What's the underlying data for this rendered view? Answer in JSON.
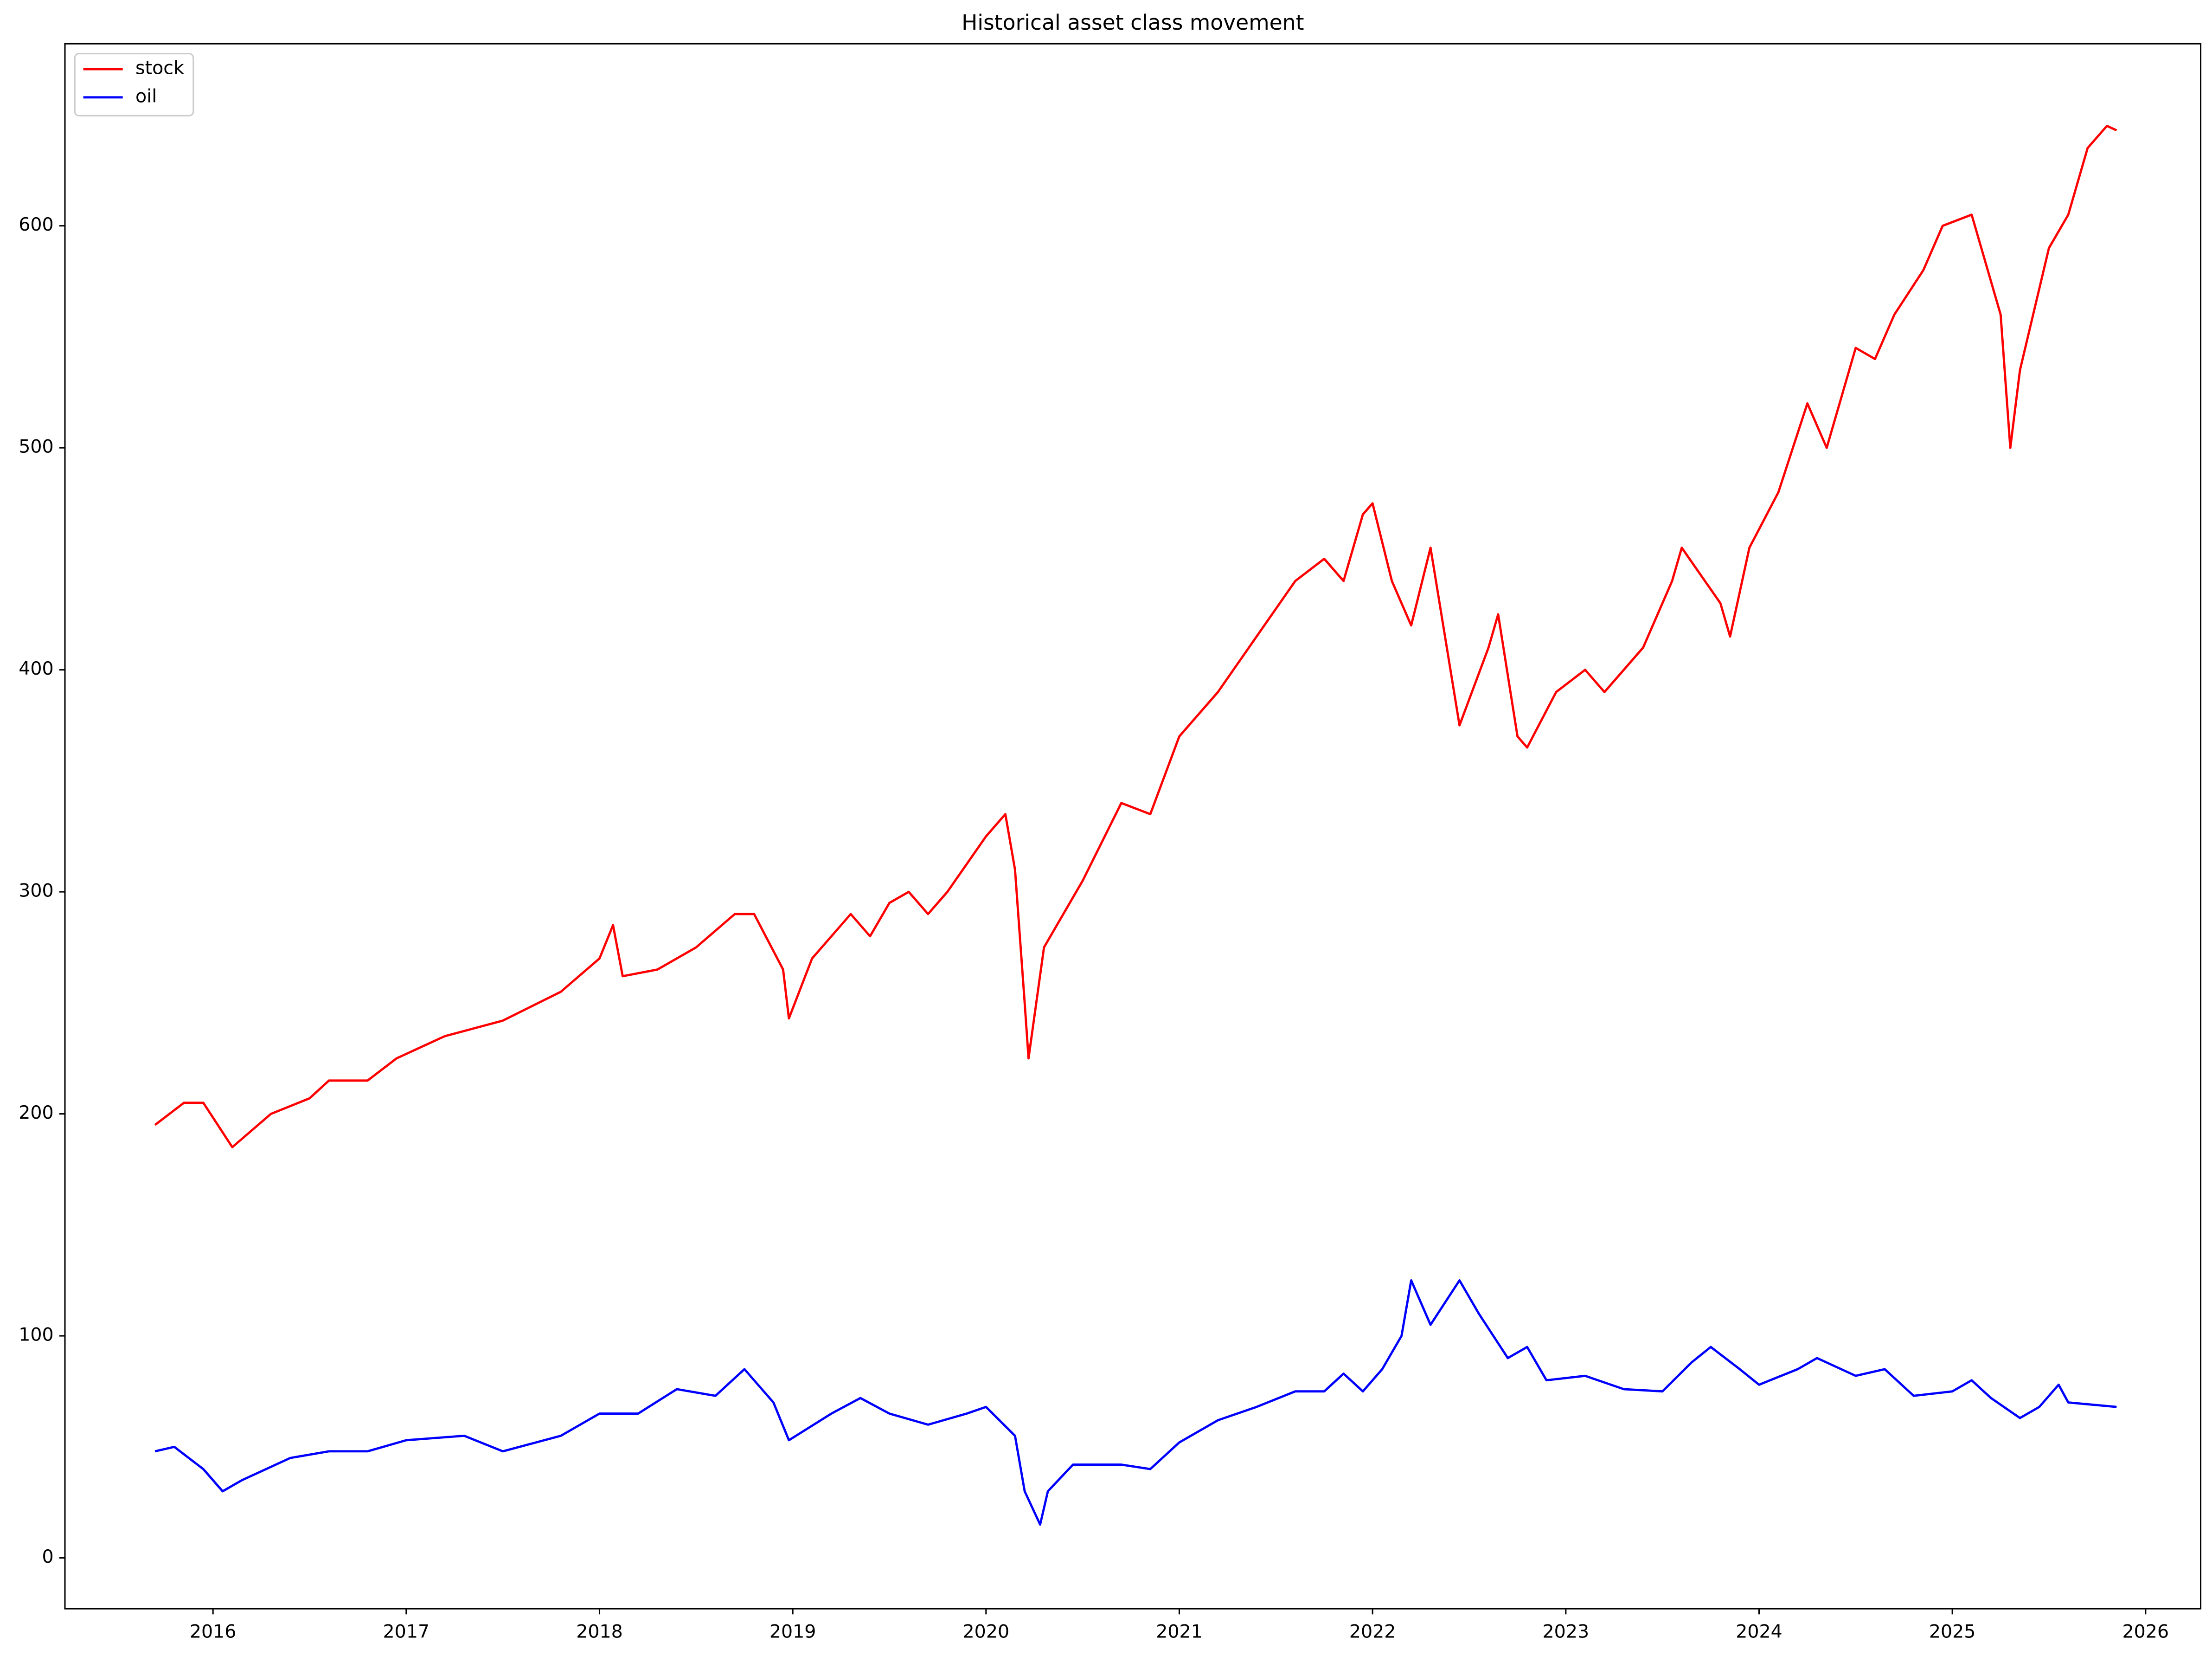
{
  "chart_data": {
    "type": "line",
    "title": "Historical asset class movement",
    "xlim": [
      2015.234,
      2026.285
    ],
    "xticks": [
      2016,
      2017,
      2018,
      2019,
      2020,
      2021,
      2022,
      2023,
      2024,
      2025,
      2026
    ],
    "ylim": [
      -22.9,
      682
    ],
    "yticks": [
      0,
      100,
      200,
      300,
      400,
      500,
      600
    ],
    "legend": "upper left",
    "grid": false,
    "series": [
      {
        "name": "stock",
        "color": "#ff0000",
        "x": [
          2015.7,
          2015.85,
          2015.95,
          2016.1,
          2016.3,
          2016.5,
          2016.6,
          2016.8,
          2016.95,
          2017.2,
          2017.5,
          2017.8,
          2018.0,
          2018.07,
          2018.12,
          2018.3,
          2018.5,
          2018.7,
          2018.8,
          2018.95,
          2018.98,
          2019.1,
          2019.3,
          2019.4,
          2019.5,
          2019.6,
          2019.7,
          2019.8,
          2020.0,
          2020.1,
          2020.15,
          2020.2,
          2020.22,
          2020.3,
          2020.5,
          2020.7,
          2020.85,
          2021.0,
          2021.2,
          2021.4,
          2021.6,
          2021.75,
          2021.85,
          2021.95,
          2022.0,
          2022.1,
          2022.2,
          2022.3,
          2022.45,
          2022.6,
          2022.65,
          2022.75,
          2022.8,
          2022.95,
          2023.1,
          2023.2,
          2023.4,
          2023.55,
          2023.6,
          2023.8,
          2023.85,
          2023.95,
          2024.1,
          2024.25,
          2024.35,
          2024.5,
          2024.6,
          2024.7,
          2024.85,
          2024.95,
          2025.1,
          2025.25,
          2025.3,
          2025.35,
          2025.5,
          2025.6,
          2025.7,
          2025.8,
          2025.85
        ],
        "values": [
          195,
          205,
          205,
          185,
          200,
          207,
          215,
          215,
          225,
          235,
          242,
          255,
          270,
          285,
          262,
          265,
          275,
          290,
          290,
          265,
          243,
          270,
          290,
          280,
          295,
          300,
          290,
          300,
          325,
          335,
          310,
          250,
          225,
          275,
          305,
          340,
          335,
          370,
          390,
          415,
          440,
          450,
          440,
          470,
          475,
          440,
          420,
          455,
          375,
          410,
          425,
          370,
          365,
          390,
          400,
          390,
          410,
          440,
          455,
          430,
          415,
          455,
          480,
          520,
          500,
          545,
          540,
          560,
          580,
          600,
          605,
          560,
          500,
          535,
          590,
          605,
          635,
          645,
          643
        ]
      },
      {
        "name": "oil",
        "color": "#0000ff",
        "x": [
          2015.7,
          2015.8,
          2015.95,
          2016.05,
          2016.15,
          2016.4,
          2016.6,
          2016.8,
          2017.0,
          2017.3,
          2017.5,
          2017.8,
          2018.0,
          2018.2,
          2018.4,
          2018.6,
          2018.75,
          2018.9,
          2018.98,
          2019.2,
          2019.35,
          2019.5,
          2019.7,
          2019.9,
          2020.0,
          2020.15,
          2020.2,
          2020.28,
          2020.32,
          2020.45,
          2020.7,
          2020.85,
          2021.0,
          2021.2,
          2021.4,
          2021.6,
          2021.75,
          2021.85,
          2021.95,
          2022.05,
          2022.15,
          2022.2,
          2022.3,
          2022.45,
          2022.55,
          2022.7,
          2022.8,
          2022.9,
          2023.1,
          2023.3,
          2023.5,
          2023.65,
          2023.75,
          2023.9,
          2024.0,
          2024.2,
          2024.3,
          2024.5,
          2024.65,
          2024.8,
          2025.0,
          2025.1,
          2025.2,
          2025.35,
          2025.45,
          2025.55,
          2025.6,
          2025.85
        ],
        "values": [
          48,
          50,
          40,
          30,
          35,
          45,
          48,
          48,
          53,
          55,
          48,
          55,
          65,
          65,
          76,
          73,
          85,
          70,
          53,
          65,
          72,
          65,
          60,
          65,
          68,
          55,
          30,
          15,
          30,
          42,
          42,
          40,
          52,
          62,
          68,
          75,
          75,
          83,
          75,
          85,
          100,
          125,
          105,
          125,
          110,
          90,
          95,
          80,
          82,
          76,
          75,
          88,
          95,
          85,
          78,
          85,
          90,
          82,
          85,
          73,
          75,
          80,
          72,
          63,
          68,
          78,
          70,
          68
        ]
      }
    ]
  }
}
